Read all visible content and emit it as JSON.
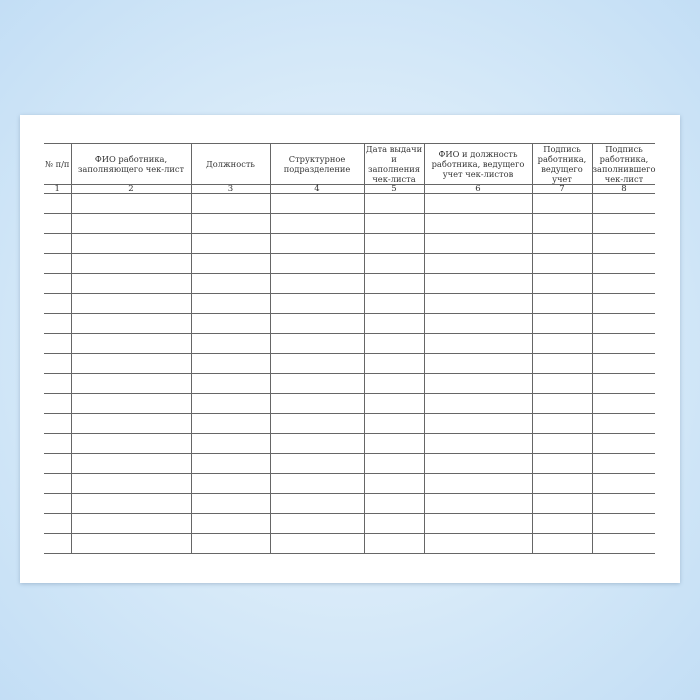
{
  "document": {
    "columns": [
      {
        "header": "№ п/п",
        "number": "1"
      },
      {
        "header": "ФИО работника, заполняющего чек-лист",
        "number": "2"
      },
      {
        "header": "Должность",
        "number": "3"
      },
      {
        "header": "Структурное подразделение",
        "number": "4"
      },
      {
        "header": "Дата выдачи и заполнения чек-листа",
        "number": "5"
      },
      {
        "header": "ФИО и должность работника, ведущего учет чек-листов",
        "number": "6"
      },
      {
        "header": "Подпись работника, ведущего учет",
        "number": "7"
      },
      {
        "header": "Подпись работника, заполнившего чек-лист",
        "number": "8"
      }
    ],
    "empty_rows": 18
  }
}
